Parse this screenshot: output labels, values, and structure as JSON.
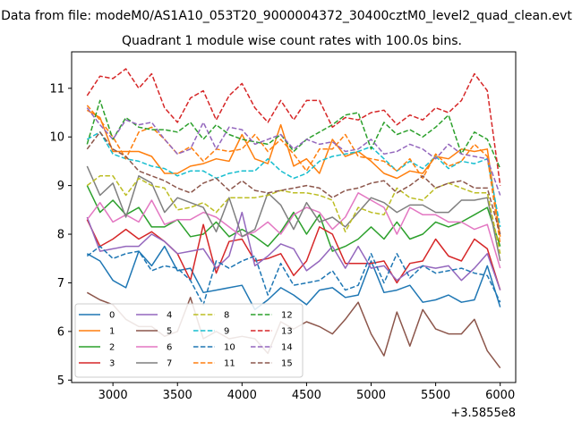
{
  "suptitle": "Data from file: modeM0/AS1A10_053T20_9000004372_30400cztM0_level2_quad_clean.evt",
  "chart_data": {
    "type": "line",
    "title": "Quadrant 1 module wise count rates with 100.0s bins.",
    "xlabel": "",
    "ylabel": "",
    "x_offset_label": "+3.5855e8",
    "x": [
      2800,
      2900,
      3000,
      3100,
      3200,
      3300,
      3400,
      3500,
      3600,
      3700,
      3800,
      3900,
      4000,
      4100,
      4200,
      4300,
      4400,
      4500,
      4600,
      4700,
      4800,
      4900,
      5000,
      5100,
      5200,
      5300,
      5400,
      5500,
      5600,
      5700,
      5800,
      5900,
      6000
    ],
    "xlim": [
      2680,
      6120
    ],
    "ylim": [
      4.95,
      11.75
    ],
    "xticks": [
      3000,
      3500,
      4000,
      4500,
      5000,
      5500,
      6000
    ],
    "yticks": [
      5,
      6,
      7,
      8,
      9,
      10,
      11
    ],
    "grid": false,
    "legend_position": "lower-left",
    "series": [
      {
        "name": "0",
        "color": "#1f77b4",
        "dash": "solid",
        "values": [
          7.6,
          7.45,
          7.05,
          6.9,
          7.65,
          7.35,
          7.75,
          7.25,
          7.3,
          6.8,
          6.85,
          6.9,
          6.95,
          6.45,
          6.65,
          6.9,
          6.75,
          6.55,
          6.85,
          6.9,
          6.7,
          6.75,
          7.45,
          6.8,
          6.85,
          6.95,
          6.6,
          6.65,
          6.75,
          6.6,
          6.65,
          7.35,
          6.5
        ]
      },
      {
        "name": "1",
        "color": "#ff7f0e",
        "dash": "solid",
        "values": [
          10.55,
          10.4,
          9.7,
          9.7,
          9.7,
          9.6,
          9.25,
          9.25,
          9.4,
          9.45,
          9.55,
          9.5,
          10.05,
          9.55,
          9.45,
          10.25,
          9.4,
          9.55,
          9.25,
          9.95,
          9.6,
          9.7,
          9.5,
          9.25,
          9.15,
          9.3,
          9.25,
          9.6,
          9.55,
          9.75,
          9.7,
          9.75,
          7.95
        ]
      },
      {
        "name": "2",
        "color": "#2ca02c",
        "dash": "solid",
        "values": [
          9.0,
          8.45,
          8.7,
          8.4,
          8.55,
          8.15,
          8.15,
          8.3,
          7.95,
          8.0,
          8.25,
          7.95,
          8.1,
          7.95,
          7.75,
          8.05,
          8.45,
          8.0,
          8.4,
          7.65,
          7.75,
          7.9,
          8.15,
          7.9,
          8.25,
          7.9,
          8.0,
          8.25,
          8.15,
          8.25,
          8.4,
          8.55,
          7.75
        ]
      },
      {
        "name": "3",
        "color": "#d62728",
        "dash": "solid",
        "values": [
          8.3,
          7.75,
          7.9,
          8.1,
          7.9,
          8.05,
          7.85,
          7.6,
          7.05,
          8.2,
          7.2,
          7.85,
          7.9,
          7.45,
          7.5,
          7.6,
          7.15,
          7.45,
          8.15,
          8.0,
          7.4,
          7.4,
          7.4,
          7.45,
          7.0,
          7.4,
          7.45,
          7.9,
          7.55,
          7.45,
          7.9,
          7.7,
          6.85
        ]
      },
      {
        "name": "4",
        "color": "#9467bd",
        "dash": "solid",
        "values": [
          8.35,
          7.65,
          7.7,
          7.75,
          7.75,
          8.0,
          7.85,
          7.6,
          7.65,
          7.7,
          7.3,
          7.55,
          8.45,
          7.35,
          7.55,
          7.8,
          7.7,
          7.25,
          7.45,
          7.75,
          7.3,
          7.75,
          7.3,
          7.35,
          7.05,
          7.25,
          7.35,
          7.3,
          7.35,
          7.05,
          7.3,
          7.6,
          6.85
        ]
      },
      {
        "name": "5",
        "color": "#8c564b",
        "dash": "solid",
        "values": [
          6.8,
          6.65,
          6.55,
          6.25,
          6.1,
          6.1,
          5.9,
          6.0,
          6.7,
          5.85,
          6.0,
          5.85,
          5.9,
          5.85,
          5.55,
          6.2,
          6.05,
          6.2,
          6.1,
          5.95,
          6.25,
          6.6,
          5.95,
          5.5,
          6.4,
          5.7,
          6.45,
          6.05,
          5.95,
          5.95,
          6.25,
          5.6,
          5.25
        ]
      },
      {
        "name": "6",
        "color": "#e377c2",
        "dash": "solid",
        "values": [
          8.3,
          8.65,
          8.25,
          8.4,
          8.25,
          8.7,
          8.2,
          8.3,
          8.3,
          8.45,
          8.35,
          8.15,
          7.95,
          8.05,
          8.25,
          8.0,
          8.4,
          8.55,
          8.45,
          8.1,
          8.35,
          8.85,
          8.7,
          8.55,
          8.0,
          8.55,
          8.4,
          8.4,
          8.25,
          8.25,
          8.1,
          8.2,
          7.3
        ]
      },
      {
        "name": "7",
        "color": "#7f7f7f",
        "dash": "solid",
        "values": [
          9.4,
          8.8,
          9.05,
          8.35,
          9.2,
          9.05,
          8.45,
          8.75,
          8.65,
          8.55,
          8.05,
          8.75,
          7.95,
          8.1,
          8.85,
          8.6,
          8.1,
          8.65,
          8.25,
          8.35,
          8.15,
          8.45,
          8.75,
          8.65,
          8.45,
          8.6,
          8.6,
          8.45,
          8.45,
          8.7,
          8.7,
          8.75,
          7.45
        ]
      },
      {
        "name": "8",
        "color": "#bcbd22",
        "dash": "dashed",
        "values": [
          9.0,
          9.2,
          9.2,
          8.8,
          9.15,
          9.0,
          8.95,
          8.5,
          8.55,
          8.65,
          8.45,
          8.75,
          8.75,
          8.75,
          8.8,
          8.9,
          8.85,
          8.85,
          8.8,
          8.7,
          8.05,
          8.55,
          8.45,
          8.4,
          8.95,
          8.75,
          8.7,
          8.95,
          9.05,
          8.95,
          8.85,
          8.85,
          7.6
        ]
      },
      {
        "name": "9",
        "color": "#17becf",
        "dash": "dashed",
        "values": [
          9.95,
          10.1,
          9.65,
          9.55,
          9.5,
          9.4,
          9.35,
          9.2,
          9.3,
          9.3,
          9.15,
          9.25,
          9.3,
          9.3,
          9.55,
          9.3,
          9.15,
          9.25,
          9.5,
          9.6,
          9.65,
          9.7,
          9.8,
          9.55,
          9.3,
          9.5,
          9.35,
          9.6,
          9.35,
          9.5,
          9.45,
          9.55,
          8.15
        ]
      },
      {
        "name": "10",
        "color": "#1f77b4",
        "dash": "dashed",
        "values": [
          7.55,
          7.75,
          7.5,
          7.6,
          7.65,
          7.25,
          7.35,
          7.3,
          7.05,
          6.55,
          7.45,
          7.3,
          7.45,
          7.55,
          6.75,
          7.4,
          6.95,
          7.0,
          7.05,
          7.25,
          6.85,
          6.95,
          7.6,
          7.0,
          7.6,
          7.1,
          7.35,
          7.2,
          7.25,
          7.3,
          7.2,
          7.15,
          6.6
        ]
      },
      {
        "name": "11",
        "color": "#ff7f0e",
        "dash": "dashed",
        "values": [
          10.65,
          10.35,
          10.0,
          9.55,
          10.1,
          10.2,
          9.95,
          9.65,
          9.8,
          9.5,
          9.75,
          9.7,
          9.75,
          10.05,
          9.7,
          9.95,
          9.65,
          9.3,
          9.75,
          9.75,
          10.05,
          9.6,
          9.55,
          9.5,
          9.3,
          9.55,
          9.15,
          9.65,
          9.4,
          9.5,
          9.85,
          9.6,
          7.8
        ]
      },
      {
        "name": "12",
        "color": "#2ca02c",
        "dash": "dashed",
        "values": [
          9.85,
          10.75,
          9.95,
          10.4,
          10.2,
          10.15,
          10.15,
          10.1,
          10.3,
          9.95,
          10.25,
          10.05,
          9.95,
          9.9,
          9.85,
          10.05,
          9.7,
          9.95,
          10.1,
          10.25,
          10.45,
          10.5,
          9.75,
          10.3,
          10.05,
          10.15,
          10.0,
          10.2,
          10.45,
          9.65,
          10.1,
          9.95,
          9.35
        ]
      },
      {
        "name": "13",
        "color": "#d62728",
        "dash": "dashed",
        "values": [
          10.85,
          11.25,
          11.2,
          11.4,
          11.0,
          11.3,
          10.6,
          10.3,
          10.8,
          10.95,
          10.35,
          10.85,
          11.1,
          10.6,
          10.3,
          10.75,
          10.35,
          10.75,
          10.75,
          10.2,
          10.4,
          10.35,
          10.5,
          10.55,
          10.25,
          10.45,
          10.35,
          10.6,
          10.5,
          10.75,
          11.3,
          10.95,
          9.0
        ]
      },
      {
        "name": "14",
        "color": "#9467bd",
        "dash": "dashed",
        "values": [
          10.6,
          10.25,
          9.95,
          10.35,
          10.25,
          10.3,
          9.95,
          9.65,
          9.75,
          10.3,
          9.75,
          10.2,
          10.15,
          9.85,
          9.95,
          10.05,
          9.75,
          9.95,
          9.85,
          9.9,
          9.7,
          9.75,
          9.95,
          9.65,
          9.7,
          9.85,
          9.75,
          9.55,
          9.85,
          9.65,
          9.6,
          9.55,
          8.8
        ]
      },
      {
        "name": "15",
        "color": "#8c564b",
        "dash": "dashed",
        "values": [
          9.75,
          10.1,
          9.75,
          9.6,
          9.3,
          9.2,
          9.1,
          8.95,
          8.85,
          9.05,
          9.15,
          8.9,
          9.1,
          8.9,
          8.85,
          8.9,
          8.95,
          9.0,
          8.95,
          8.75,
          8.9,
          8.95,
          9.05,
          9.1,
          8.85,
          9.0,
          9.2,
          8.95,
          9.05,
          9.1,
          8.95,
          8.95,
          8.0
        ]
      }
    ]
  }
}
